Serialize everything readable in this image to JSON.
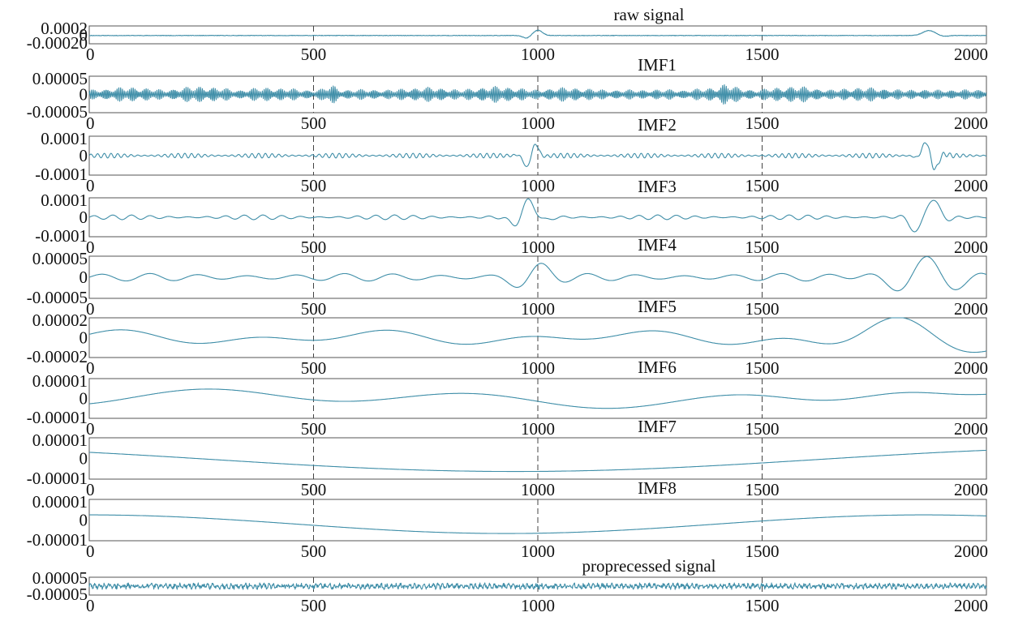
{
  "colors": {
    "trace": "#3f8ea8",
    "frame": "#555555",
    "grid": "#444444"
  },
  "chart_data": [
    {
      "type": "line",
      "title": "raw signal",
      "xlim": [
        0,
        2000
      ],
      "ylim": [
        -0.0002,
        0.0002
      ],
      "yticks": [
        "0.0002",
        "0",
        "-0.00020"
      ],
      "xticks": [
        "0",
        "500",
        "1000",
        "1500",
        "2000"
      ],
      "x_gridlines": [
        500,
        1000,
        1500
      ],
      "signal": "raw"
    },
    {
      "type": "line",
      "title": "IMF1",
      "xlim": [
        0,
        2000
      ],
      "ylim": [
        -5e-05,
        5e-05
      ],
      "yticks": [
        "0.00005",
        "0",
        "-0.00005"
      ],
      "xticks": [
        "0",
        "500",
        "1000",
        "1500",
        "2000"
      ],
      "x_gridlines": [
        500,
        1000,
        1500
      ],
      "signal": "imf1"
    },
    {
      "type": "line",
      "title": "IMF2",
      "xlim": [
        0,
        2000
      ],
      "ylim": [
        -0.0001,
        0.0001
      ],
      "yticks": [
        "0.0001",
        "0",
        "-0.0001"
      ],
      "xticks": [
        "0",
        "500",
        "1000",
        "1500",
        "2000"
      ],
      "x_gridlines": [
        500,
        1000,
        1500
      ],
      "signal": "imf2"
    },
    {
      "type": "line",
      "title": "IMF3",
      "xlim": [
        0,
        2000
      ],
      "ylim": [
        -0.0001,
        0.0001
      ],
      "yticks": [
        "0.0001",
        "0",
        "-0.0001"
      ],
      "xticks": [
        "0",
        "500",
        "1000",
        "1500",
        "2000"
      ],
      "x_gridlines": [
        500,
        1000,
        1500
      ],
      "signal": "imf3"
    },
    {
      "type": "line",
      "title": "IMF4",
      "xlim": [
        0,
        2000
      ],
      "ylim": [
        -5e-05,
        5e-05
      ],
      "yticks": [
        "0.00005",
        "0",
        "-0.00005"
      ],
      "xticks": [
        "0",
        "500",
        "1000",
        "1500",
        "2000"
      ],
      "x_gridlines": [
        500,
        1000,
        1500
      ],
      "signal": "imf4"
    },
    {
      "type": "line",
      "title": "IMF5",
      "xlim": [
        0,
        2000
      ],
      "ylim": [
        -2e-05,
        2e-05
      ],
      "yticks": [
        "0.00002",
        "0",
        "-0.00002"
      ],
      "xticks": [
        "0",
        "500",
        "1000",
        "1500",
        "2000"
      ],
      "x_gridlines": [
        500,
        1000,
        1500
      ],
      "signal": "imf5"
    },
    {
      "type": "line",
      "title": "IMF6",
      "xlim": [
        0,
        2000
      ],
      "ylim": [
        -1e-05,
        1e-05
      ],
      "yticks": [
        "0.00001",
        "0",
        "-0.00001"
      ],
      "xticks": [
        "0",
        "500",
        "1000",
        "1500",
        "2000"
      ],
      "x_gridlines": [
        500,
        1000,
        1500
      ],
      "signal": "imf6"
    },
    {
      "type": "line",
      "title": "IMF7",
      "xlim": [
        0,
        2000
      ],
      "ylim": [
        -1e-05,
        1e-05
      ],
      "yticks": [
        "0.00001",
        "0",
        "-0.00001"
      ],
      "xticks": [
        "0",
        "500",
        "1000",
        "1500",
        "2000"
      ],
      "x_gridlines": [
        500,
        1000,
        1500
      ],
      "signal": "imf7"
    },
    {
      "type": "line",
      "title": "IMF8",
      "xlim": [
        0,
        2000
      ],
      "ylim": [
        -1e-05,
        1e-05
      ],
      "yticks": [
        "0.00001",
        "0",
        "-0.00001"
      ],
      "xticks": [
        "0",
        "500",
        "1000",
        "1500",
        "2000"
      ],
      "x_gridlines": [
        500,
        1000,
        1500
      ],
      "signal": "imf8"
    },
    {
      "type": "line",
      "title": "proprecessed signal",
      "xlim": [
        0,
        2000
      ],
      "ylim": [
        -5e-05,
        5e-05
      ],
      "yticks": [
        "0.00005",
        "-0.00005"
      ],
      "xticks": [
        "0",
        "500",
        "1000",
        "1500",
        "2000"
      ],
      "x_gridlines": [
        500,
        1000,
        1500
      ],
      "signal": "processed"
    }
  ]
}
